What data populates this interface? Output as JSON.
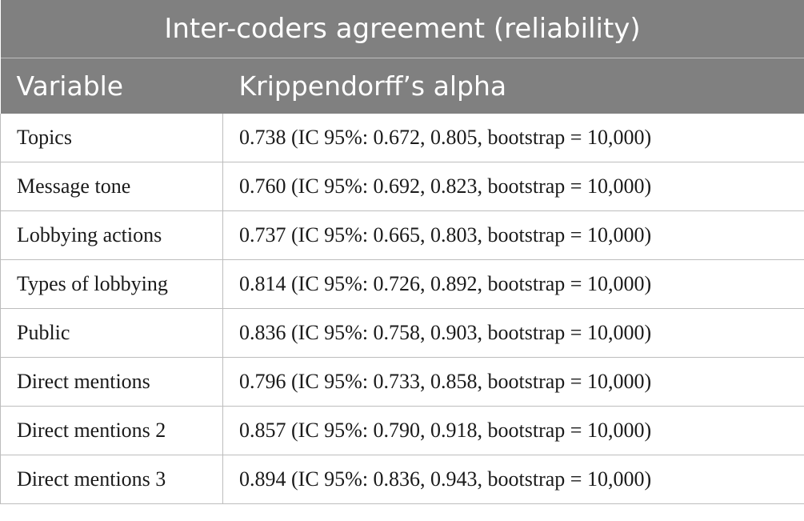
{
  "table": {
    "title": "Inter-coders agreement (reliability)",
    "columns": [
      "Variable",
      "Krippendorff’s alpha"
    ],
    "rows": [
      {
        "variable": "Topics",
        "alpha": "0.738 (IC 95%: 0.672, 0.805, bootstrap = 10,000)"
      },
      {
        "variable": "Message tone",
        "alpha": "0.760 (IC 95%: 0.692, 0.823, bootstrap = 10,000)"
      },
      {
        "variable": "Lobbying actions",
        "alpha": "0.737 (IC 95%: 0.665, 0.803, bootstrap = 10,000)"
      },
      {
        "variable": "Types of lobbying",
        "alpha": "0.814 (IC 95%: 0.726, 0.892, bootstrap = 10,000)"
      },
      {
        "variable": "Public",
        "alpha": "0.836 (IC 95%: 0.758, 0.903, bootstrap = 10,000)"
      },
      {
        "variable": "Direct mentions",
        "alpha": "0.796 (IC 95%: 0.733, 0.858, bootstrap = 10,000)"
      },
      {
        "variable": "Direct mentions 2",
        "alpha": "0.857 (IC 95%: 0.790, 0.918, bootstrap = 10,000)"
      },
      {
        "variable": "Direct mentions 3",
        "alpha": "0.894 (IC 95%: 0.836, 0.943, bootstrap = 10,000)"
      }
    ]
  }
}
